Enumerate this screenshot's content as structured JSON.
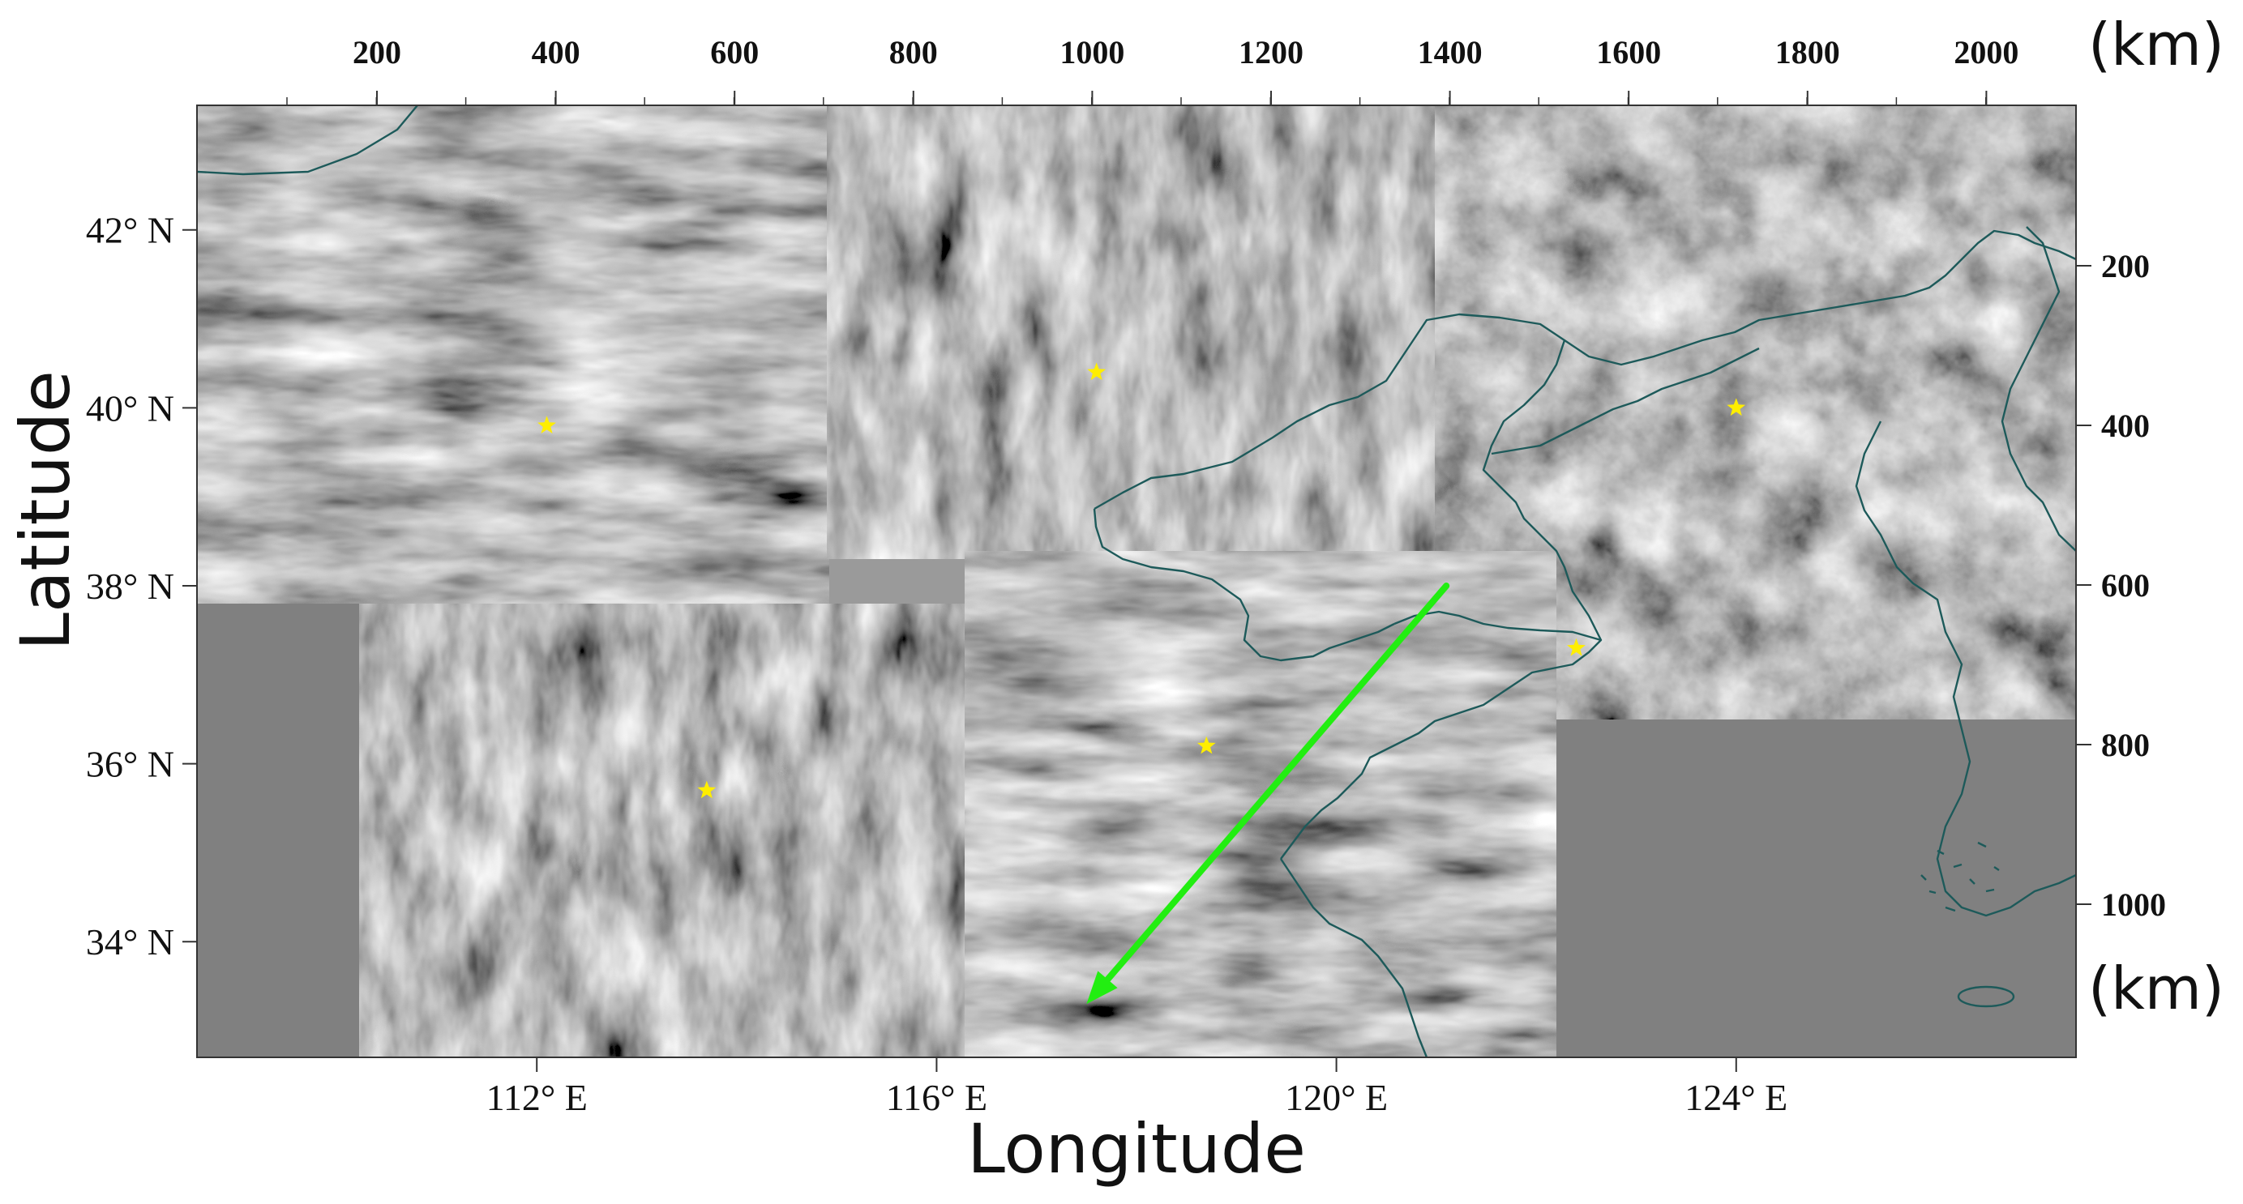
{
  "figure": {
    "x_axis_label": "Longitude",
    "y_axis_label": "Latitude",
    "top_unit_label": "(km)",
    "right_unit_label": "(km)",
    "longitude_ticks": [
      {
        "lon": 112,
        "label": "112° E"
      },
      {
        "lon": 116,
        "label": "116° E"
      },
      {
        "lon": 120,
        "label": "120° E"
      },
      {
        "lon": 124,
        "label": "124° E"
      }
    ],
    "latitude_ticks": [
      {
        "lat": 42,
        "label": "42° N"
      },
      {
        "lat": 40,
        "label": "40° N"
      },
      {
        "lat": 38,
        "label": "38° N"
      },
      {
        "lat": 36,
        "label": "36° N"
      },
      {
        "lat": 34,
        "label": "34° N"
      }
    ],
    "top_km_ticks": [
      "200",
      "400",
      "600",
      "800",
      "1000",
      "1200",
      "1400",
      "1600",
      "1800",
      "2000"
    ],
    "right_km_ticks": [
      "200",
      "400",
      "600",
      "800",
      "1000"
    ],
    "map_extent": {
      "lon_min": 108.6,
      "lon_max": 127.4,
      "lat_min": 32.7,
      "lat_max": 43.4
    },
    "stations": [
      {
        "name": "station-1",
        "lon": 112.1,
        "lat": 39.8
      },
      {
        "name": "station-2",
        "lon": 117.6,
        "lat": 40.4
      },
      {
        "name": "station-3",
        "lon": 124.0,
        "lat": 40.0
      },
      {
        "name": "station-4",
        "lon": 122.4,
        "lat": 37.3
      },
      {
        "name": "station-5",
        "lon": 118.7,
        "lat": 36.2
      },
      {
        "name": "station-6",
        "lon": 113.7,
        "lat": 35.7
      }
    ],
    "arrow": {
      "from_lon": 121.1,
      "from_lat": 38.0,
      "to_lon": 117.5,
      "to_lat": 33.3
    },
    "colors": {
      "station_marker": "#ffee00",
      "arrow": "#22ee11",
      "coastline": "#1d5a5a",
      "no_data": "#808080"
    }
  }
}
